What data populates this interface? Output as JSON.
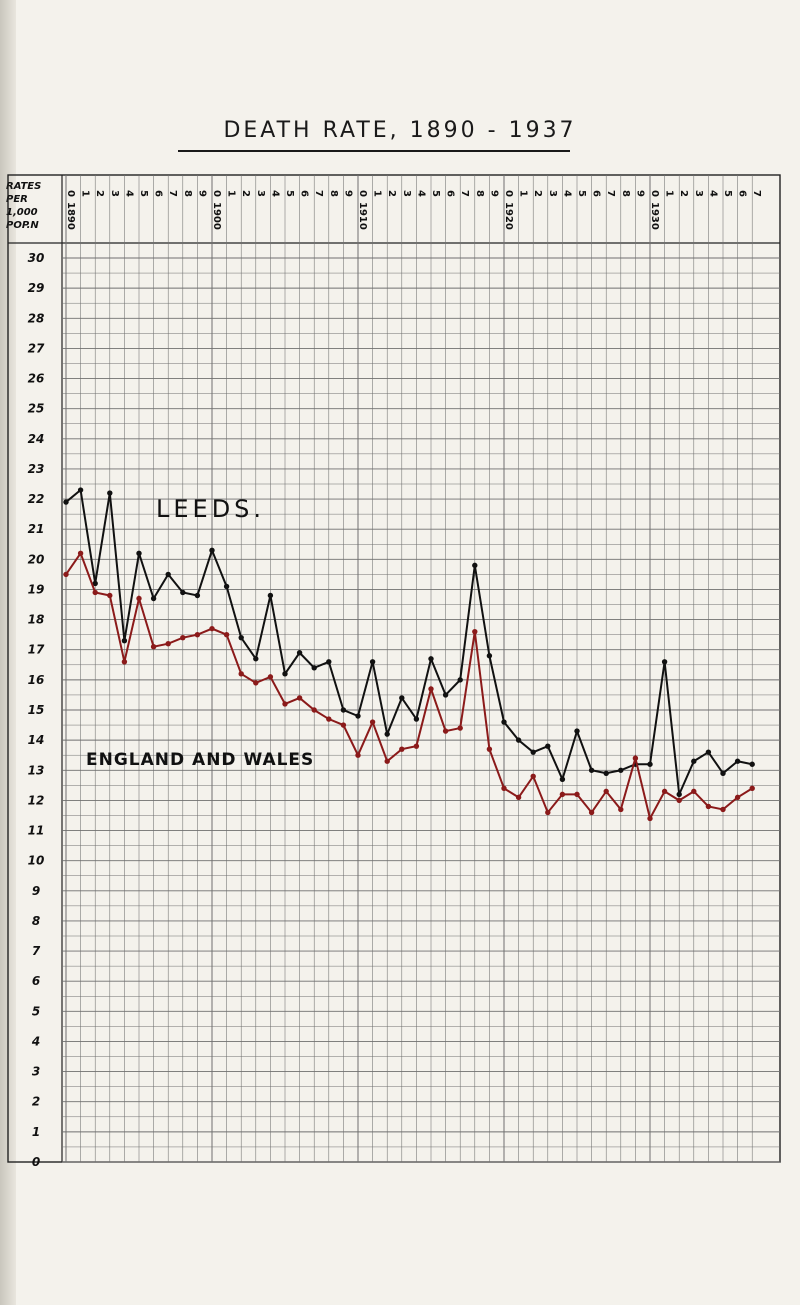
{
  "title": "DEATH RATE, 1890 - 1937",
  "header": {
    "rates_lines": [
      "RATES",
      "PER",
      "1,000",
      "POP.N"
    ]
  },
  "colors": {
    "leeds": "#111111",
    "england_wales": "#8b1a1a",
    "grid": "#6f6f6f",
    "paper": "#f4f2ec"
  },
  "chart_data": {
    "type": "line",
    "title": "DEATH RATE, 1890 - 1937",
    "ylabel": "RATES PER 1,000 POP.N",
    "xlabel": "",
    "x": [
      1890,
      1891,
      1892,
      1893,
      1894,
      1895,
      1896,
      1897,
      1898,
      1899,
      1900,
      1901,
      1902,
      1903,
      1904,
      1905,
      1906,
      1907,
      1908,
      1909,
      1910,
      1911,
      1912,
      1913,
      1914,
      1915,
      1916,
      1917,
      1918,
      1919,
      1920,
      1921,
      1922,
      1923,
      1924,
      1925,
      1926,
      1927,
      1928,
      1929,
      1930,
      1931,
      1932,
      1933,
      1934,
      1935,
      1936,
      1937
    ],
    "decade_labels": [
      "1890",
      "1900",
      "1910",
      "1920",
      "1930"
    ],
    "yticks": [
      0,
      1,
      2,
      3,
      4,
      5,
      6,
      7,
      8,
      9,
      10,
      11,
      12,
      13,
      14,
      15,
      16,
      17,
      18,
      19,
      20,
      21,
      22,
      23,
      24,
      25,
      26,
      27,
      28,
      29,
      30
    ],
    "ylim": [
      0,
      30
    ],
    "grid": true,
    "series": [
      {
        "name": "LEEDS",
        "label_text": "LEEDS.",
        "values": [
          21.9,
          22.3,
          19.2,
          22.2,
          17.3,
          20.2,
          18.7,
          19.5,
          18.9,
          18.8,
          20.3,
          19.1,
          17.4,
          16.7,
          18.8,
          16.2,
          16.9,
          16.4,
          16.6,
          15.0,
          14.8,
          16.6,
          14.2,
          15.4,
          14.7,
          16.7,
          15.5,
          16.0,
          19.8,
          16.8,
          14.6,
          14.0,
          13.6,
          13.8,
          12.7,
          14.3,
          13.0,
          12.9,
          13.0,
          13.2,
          13.2,
          16.6,
          12.2,
          13.3,
          13.6,
          12.9,
          13.3,
          13.2
        ]
      },
      {
        "name": "ENGLAND AND WALES",
        "label_text": "ENGLAND AND WALES",
        "values": [
          19.5,
          20.2,
          18.9,
          18.8,
          16.6,
          18.7,
          17.1,
          17.2,
          17.4,
          17.5,
          17.7,
          17.5,
          16.2,
          15.9,
          16.1,
          15.2,
          15.4,
          15.0,
          14.7,
          14.5,
          13.5,
          14.6,
          13.3,
          13.7,
          13.8,
          15.7,
          14.3,
          14.4,
          17.6,
          13.7,
          12.4,
          12.1,
          12.8,
          11.6,
          12.2,
          12.2,
          11.6,
          12.3,
          11.7,
          13.4,
          11.4,
          12.3,
          12.0,
          12.3,
          11.8,
          11.7,
          12.1,
          12.4
        ]
      }
    ]
  }
}
